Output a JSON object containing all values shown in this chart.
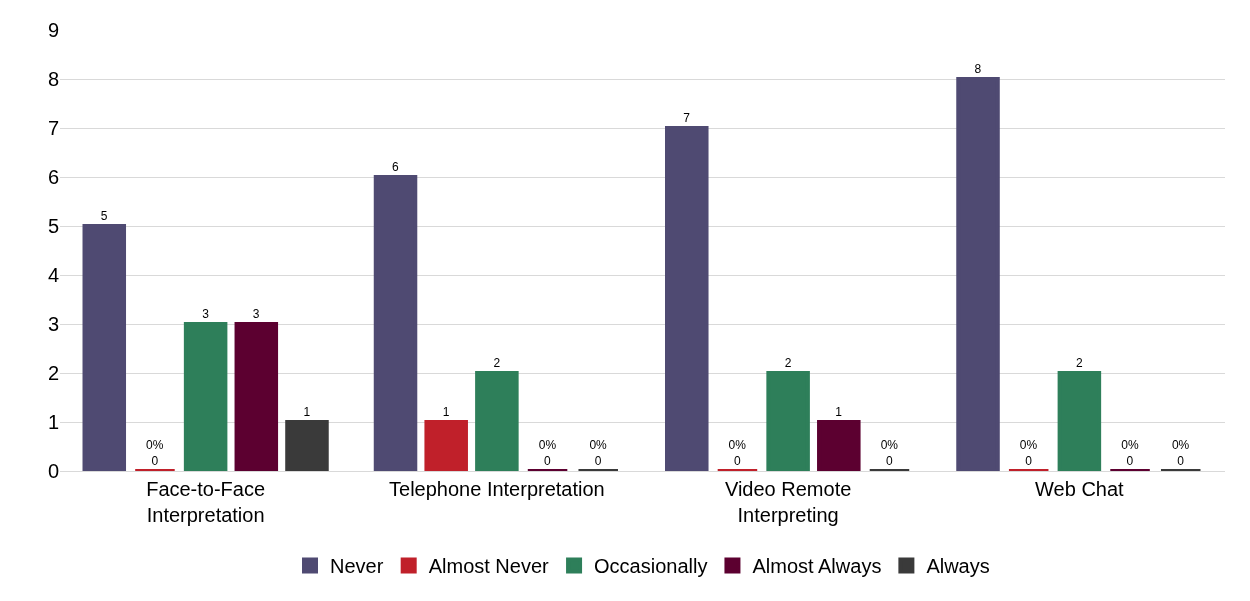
{
  "chart_data": {
    "type": "bar",
    "categories": [
      "Face-to-Face Interpretation",
      "Telephone Interpretation",
      "Video Remote Interpreting",
      "Web Chat"
    ],
    "series": [
      {
        "name": "Never",
        "color": "#4f4a72",
        "values": [
          5,
          6,
          7,
          8
        ],
        "value_labels": [
          "5",
          "6",
          "7",
          "8"
        ]
      },
      {
        "name": "Almost Never",
        "color": "#c0202a",
        "values": [
          0,
          1,
          0,
          0
        ],
        "value_labels": [
          "0%\n0",
          "1",
          "0%\n0",
          "0%\n0"
        ]
      },
      {
        "name": "Occasionally",
        "color": "#2e7f5a",
        "values": [
          3,
          2,
          2,
          2
        ],
        "value_labels": [
          "3",
          "2",
          "2",
          "2"
        ]
      },
      {
        "name": "Almost Always",
        "color": "#5c0030",
        "values": [
          3,
          0,
          1,
          0
        ],
        "value_labels": [
          "3",
          "0%\n0",
          "1",
          "0%\n0"
        ]
      },
      {
        "name": "Always",
        "color": "#3a3a3a",
        "values": [
          1,
          0,
          0,
          0
        ],
        "value_labels": [
          "1",
          "0%\n0",
          "0%\n0",
          "0%\n0"
        ]
      }
    ],
    "ylim": [
      0,
      9
    ],
    "yticks": [
      0,
      1,
      2,
      3,
      4,
      5,
      6,
      7,
      8,
      9
    ],
    "grid": "y",
    "legend": "bottom"
  }
}
